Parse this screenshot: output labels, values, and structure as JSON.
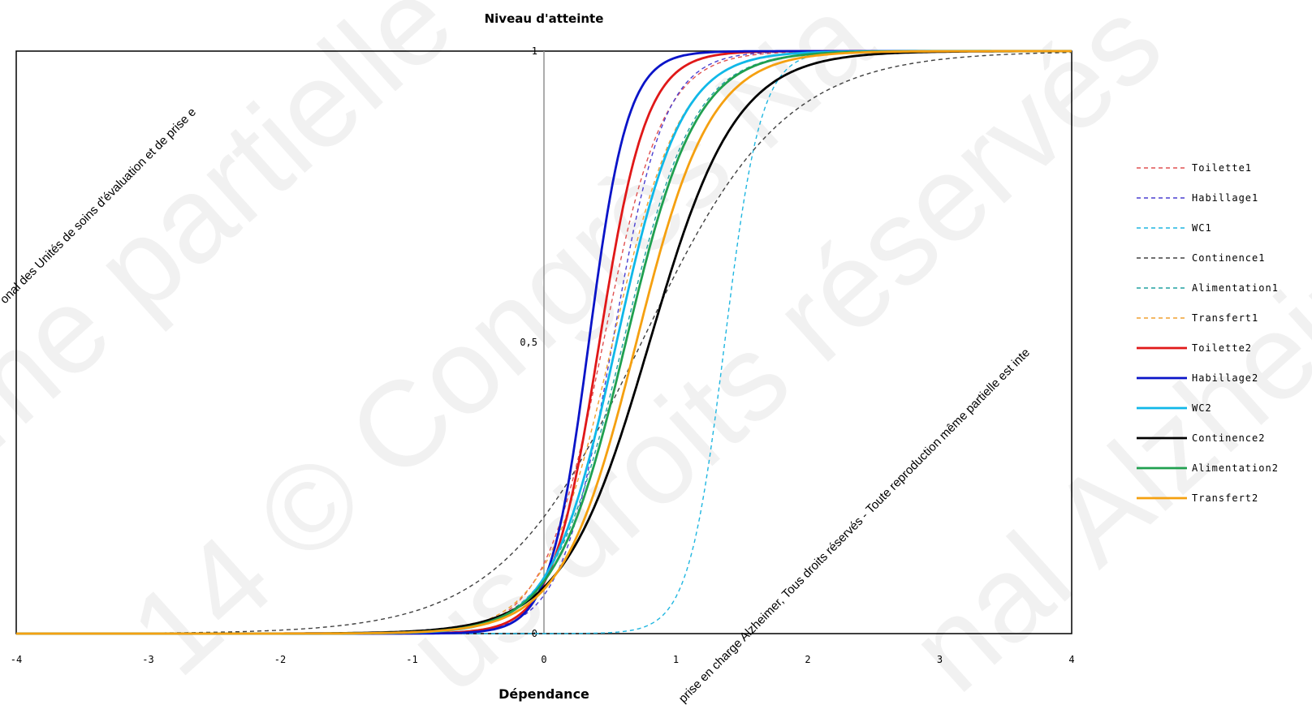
{
  "chart_data": {
    "type": "line",
    "title": "Niveau d'atteinte",
    "xlabel": "Dépendance",
    "ylabel": "",
    "xlim": [
      -4,
      4
    ],
    "ylim": [
      0,
      1
    ],
    "xticks": [
      "-4",
      "-3",
      "-2",
      "-1",
      "0",
      "1",
      "2",
      "3",
      "4"
    ],
    "yticks": [
      {
        "value": 1,
        "label": "1"
      },
      {
        "value": 0.5,
        "label": "0,5"
      },
      {
        "value": 0,
        "label": "0"
      }
    ],
    "grid": false,
    "legend_position": "right",
    "series": [
      {
        "name": "Toilette1",
        "color": "#e05050",
        "dashed": true,
        "model": {
          "a": 2.6,
          "b": 0.45,
          "c": 0
        }
      },
      {
        "name": "Habillage1",
        "color": "#4a3fd0",
        "dashed": true,
        "model": {
          "a": 3.0,
          "b": 0.52,
          "c": 0
        }
      },
      {
        "name": "WC1",
        "color": "#1fb6e0",
        "dashed": true,
        "model": {
          "a": 4.3,
          "b": 1.37,
          "c": 0
        }
      },
      {
        "name": "Continence1",
        "color": "#404040",
        "dashed": true,
        "model": {
          "a": 1.1,
          "b": 0.74,
          "c": 0
        }
      },
      {
        "name": "Alimentation1",
        "color": "#20a0a0",
        "dashed": true,
        "model": {
          "a": 2.2,
          "b": 0.6,
          "c": 0
        }
      },
      {
        "name": "Transfert1",
        "color": "#f0a030",
        "dashed": true,
        "model": {
          "a": 2.3,
          "b": 0.52,
          "c": 0
        }
      },
      {
        "name": "Toilette2",
        "color": "#e01818",
        "dashed": false,
        "model": {
          "a": 3.3,
          "b": 0.42,
          "c": 0
        }
      },
      {
        "name": "Habillage2",
        "color": "#0a14c8",
        "dashed": false,
        "model": {
          "a": 4.0,
          "b": 0.34,
          "c": 0
        }
      },
      {
        "name": "WC2",
        "color": "#10b8e8",
        "dashed": false,
        "model": {
          "a": 2.4,
          "b": 0.55,
          "c": 0
        }
      },
      {
        "name": "Continence2",
        "color": "#000000",
        "dashed": false,
        "model": {
          "a": 1.8,
          "b": 0.8,
          "c": 0
        }
      },
      {
        "name": "Alimentation2",
        "color": "#20a050",
        "dashed": false,
        "model": {
          "a": 2.2,
          "b": 0.62,
          "c": 0
        }
      },
      {
        "name": "Transfert2",
        "color": "#f5a010",
        "dashed": false,
        "model": {
          "a": 2.1,
          "b": 0.7,
          "c": 0
        }
      }
    ]
  },
  "watermark": {
    "upper_left": "onal des Unités de soins d'évaluation et de prise e",
    "lower_center": "prise en charge Alzheimer, Tous droits réservés - Toute reproduction même partielle est inte",
    "large_1": "me partielle",
    "large_2": "14 © Congrès Na",
    "large_3": "us droits réservés",
    "large_4": "nal Alzheim"
  }
}
